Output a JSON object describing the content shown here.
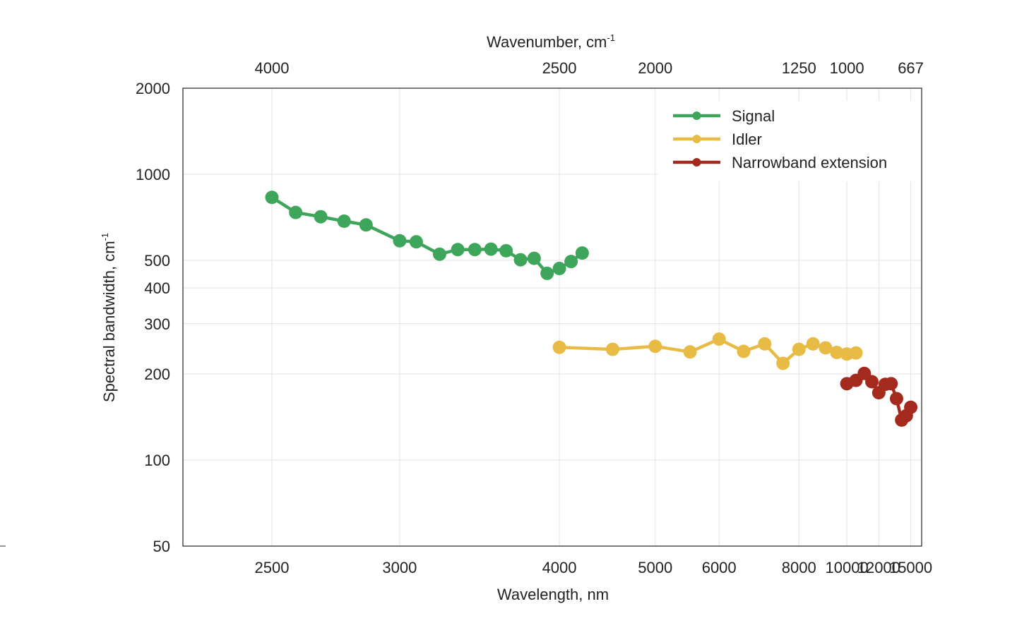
{
  "chart_data": {
    "type": "line",
    "x_scale": "reciprocal",
    "y_scale": "log",
    "xlim": [
      2240,
      16400
    ],
    "ylim": [
      50,
      2000
    ],
    "grid": true,
    "legend_position": "top-right",
    "xlabel": "Wavelength, nm",
    "ylabel_main": "Spectral bandwidth, cm",
    "ylabel_sup": "-1",
    "x2label_main": "Wavenumber, cm",
    "x2label_sup": "-1",
    "x_ticks": [
      2500,
      3000,
      4000,
      5000,
      6000,
      8000,
      10000,
      12000,
      15000
    ],
    "x_tick_labels": [
      "2500",
      "3000",
      "4000",
      "5000",
      "6000",
      "8000",
      "10000",
      "12000",
      "15000"
    ],
    "x2_ticks_wavelength": [
      2500,
      4000,
      5000,
      8000,
      10000,
      15000
    ],
    "x2_tick_labels": [
      "4000",
      "2500",
      "2000",
      "1250",
      "1000",
      "667"
    ],
    "y_ticks": [
      50,
      100,
      200,
      300,
      400,
      500,
      1000,
      2000
    ],
    "y_tick_labels": [
      "50",
      "100",
      "200",
      "300",
      "400",
      "500",
      "1000",
      "2000"
    ],
    "series": [
      {
        "name": "Signal",
        "color": "#3da65a",
        "x": [
          2500,
          2580,
          2670,
          2760,
          2850,
          3000,
          3080,
          3200,
          3300,
          3400,
          3500,
          3600,
          3700,
          3800,
          3900,
          4000,
          4100,
          4200
        ],
        "y": [
          830,
          735,
          710,
          685,
          665,
          585,
          580,
          525,
          545,
          545,
          547,
          540,
          502,
          508,
          450,
          468,
          495,
          530
        ]
      },
      {
        "name": "Idler",
        "color": "#e8bb45",
        "x": [
          4000,
          4500,
          5000,
          5500,
          6000,
          6500,
          7000,
          7500,
          8000,
          8500,
          9000,
          9500,
          10000,
          10500
        ],
        "y": [
          248,
          244,
          250,
          239,
          265,
          240,
          255,
          218,
          244,
          255,
          247,
          238,
          235,
          237
        ]
      },
      {
        "name": "Narrowband extension",
        "color": "#a52a1e",
        "x": [
          10000,
          10500,
          11000,
          11500,
          12000,
          12500,
          13000,
          13500,
          14000,
          14500,
          15000
        ],
        "y": [
          185,
          190,
          201,
          188,
          172,
          184,
          185,
          164,
          138,
          143,
          153
        ]
      }
    ]
  }
}
